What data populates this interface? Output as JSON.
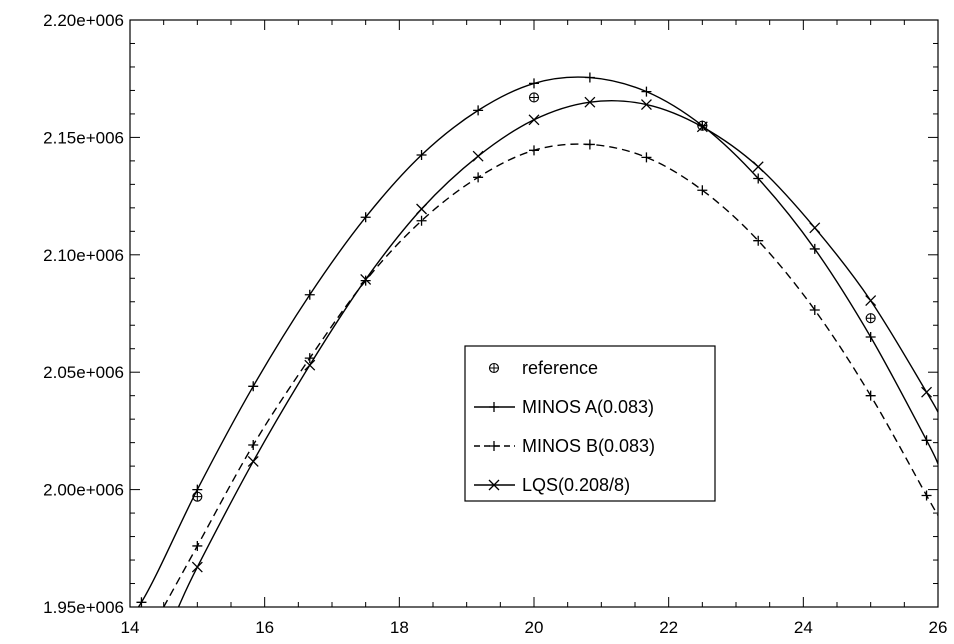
{
  "chart_data": {
    "type": "line",
    "title": "",
    "xlabel": "",
    "ylabel": "",
    "xlim": [
      14,
      26
    ],
    "ylim": [
      1950000,
      2200000
    ],
    "x_ticks": [
      14,
      16,
      18,
      20,
      22,
      24,
      26
    ],
    "x_tick_labels": [
      "14",
      "16",
      "18",
      "20",
      "22",
      "24",
      "26"
    ],
    "y_ticks": [
      1950000,
      2000000,
      2050000,
      2100000,
      2150000,
      2200000
    ],
    "y_tick_labels": [
      "1.95e+006",
      "2.00e+006",
      "2.05e+006",
      "2.10e+006",
      "2.15e+006",
      "2.20e+006"
    ],
    "grid": false,
    "legend_position": "center-right",
    "series": [
      {
        "name": "reference",
        "style": "markers-only",
        "marker": "circle-plus",
        "color": "#000000",
        "x": [
          15,
          20,
          22.5,
          25
        ],
        "y": [
          1997000,
          2167000,
          2155000,
          2073000
        ]
      },
      {
        "name": "MINOS A(0.083)",
        "style": "solid",
        "marker": "plus",
        "color": "#000000",
        "x": [
          13.6,
          14.17,
          15,
          15.83,
          16.67,
          17.5,
          18.33,
          19.17,
          20,
          20.83,
          21.67,
          22.5,
          23.33,
          24.17,
          25,
          25.83,
          26
        ],
        "y": [
          1934000,
          1952000,
          2000000,
          2044000,
          2083000,
          2116000,
          2142500,
          2161500,
          2173000,
          2175500,
          2169500,
          2155000,
          2132500,
          2102500,
          2065000,
          2021000,
          2011000
        ],
        "marker_x": [
          14.17,
          15,
          15.83,
          16.67,
          17.5,
          18.33,
          19.17,
          20,
          20.83,
          21.67,
          22.5,
          23.33,
          24.17,
          25,
          25.83
        ],
        "marker_y": [
          1952000,
          2000000,
          2044000,
          2083000,
          2116000,
          2142500,
          2161500,
          2173000,
          2175500,
          2169500,
          2155000,
          2132500,
          2102500,
          2065000,
          2021000
        ]
      },
      {
        "name": "MINOS B(0.083)",
        "style": "dashed",
        "marker": "plus",
        "color": "#000000",
        "x": [
          14.5,
          15,
          15.83,
          16.67,
          17.5,
          18.33,
          19.17,
          20,
          20.83,
          21.67,
          22.5,
          23.33,
          24.17,
          25,
          25.83,
          26
        ],
        "y": [
          1950000,
          1976000,
          2019000,
          2056000,
          2089000,
          2114500,
          2133000,
          2144500,
          2147000,
          2141500,
          2127500,
          2106000,
          2076500,
          2040000,
          1997500,
          1989000
        ],
        "marker_x": [
          15,
          15.83,
          16.67,
          17.5,
          18.33,
          19.17,
          20,
          20.83,
          21.67,
          22.5,
          23.33,
          24.17,
          25,
          25.83
        ],
        "marker_y": [
          1976000,
          2019000,
          2056000,
          2089000,
          2114500,
          2133000,
          2144500,
          2147000,
          2141500,
          2127500,
          2106000,
          2076500,
          2040000,
          1997500
        ]
      },
      {
        "name": "LQS(0.208/8)",
        "style": "solid",
        "marker": "x",
        "color": "#000000",
        "x": [
          14.72,
          15,
          15.83,
          16.67,
          17.5,
          18.33,
          19.17,
          20,
          20.83,
          21.67,
          22.5,
          23.33,
          24.17,
          25,
          25.83,
          26
        ],
        "y": [
          1950000,
          1967000,
          2012000,
          2053000,
          2089500,
          2119500,
          2142000,
          2157500,
          2165000,
          2164000,
          2154500,
          2137500,
          2111500,
          2080500,
          2041500,
          2033000
        ],
        "marker_x": [
          15,
          15.83,
          16.67,
          17.5,
          18.33,
          19.17,
          20,
          20.83,
          21.67,
          22.5,
          23.33,
          24.17,
          25,
          25.83
        ],
        "marker_y": [
          1967000,
          2012000,
          2053000,
          2089500,
          2119500,
          2142000,
          2157500,
          2165000,
          2164000,
          2154500,
          2137500,
          2111500,
          2080500,
          2041500
        ]
      }
    ]
  }
}
